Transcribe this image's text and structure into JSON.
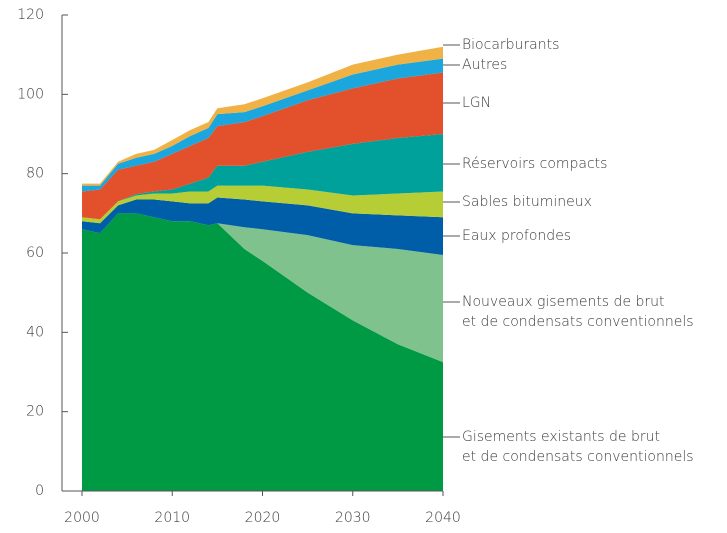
{
  "chart_data": {
    "type": "stacked_area",
    "x": [
      2000,
      2002,
      2004,
      2006,
      2008,
      2010,
      2012,
      2014,
      2015,
      2018,
      2020,
      2025,
      2030,
      2035,
      2040
    ],
    "xlim": [
      2000,
      2040
    ],
    "xticks": [
      2000,
      2010,
      2020,
      2030,
      2040
    ],
    "ylim": [
      0,
      120
    ],
    "yticks": [
      0,
      20,
      40,
      60,
      80,
      100,
      120
    ],
    "series": [
      {
        "name": "Gisements existants de brut\net de condensats conventionnels",
        "color": "#009a44",
        "values": [
          66,
          65,
          70,
          70,
          69,
          68,
          68,
          67,
          67.5,
          61,
          58,
          50,
          43,
          37,
          32.5
        ]
      },
      {
        "name": "Nouveaux gisements de brut\net de condensats conventionnels",
        "color": "#7fc28e",
        "values": [
          0,
          0,
          0,
          0,
          0,
          0,
          0,
          0,
          0,
          5.5,
          8,
          14.5,
          19,
          24,
          27
        ]
      },
      {
        "name": "Eaux profondes",
        "color": "#005ea8",
        "values": [
          2,
          2.5,
          2,
          3.5,
          4.5,
          5,
          4.5,
          5.5,
          6.5,
          7,
          7,
          7.5,
          8,
          8.5,
          9.5
        ]
      },
      {
        "name": "Sables bitumineux",
        "color": "#b7cd36",
        "values": [
          1,
          1,
          1,
          1,
          1.5,
          2,
          3,
          3,
          3,
          3.5,
          4,
          4,
          4.5,
          5.5,
          6.5
        ]
      },
      {
        "name": "Réservoirs compacts",
        "color": "#00a19a",
        "values": [
          0,
          0,
          0,
          0.3,
          0.5,
          1,
          2,
          3.5,
          5,
          5,
          6,
          9.5,
          13,
          14,
          14.5
        ]
      },
      {
        "name": "LGN",
        "color": "#e2512b",
        "values": [
          6.5,
          7.5,
          8,
          7.2,
          7.5,
          9,
          9.5,
          10,
          10,
          11,
          11.5,
          13,
          14,
          15,
          15.5
        ]
      },
      {
        "name": "Autres",
        "color": "#1ba6de",
        "values": [
          1.5,
          1,
          1.5,
          2,
          2,
          2,
          2.5,
          2.5,
          3,
          2.5,
          2.5,
          2.5,
          3.5,
          3.5,
          3.5
        ]
      },
      {
        "name": "Biocarburants",
        "color": "#f0b245",
        "values": [
          0.5,
          0.5,
          0.5,
          1,
          1,
          1.5,
          1.5,
          1.5,
          1.5,
          2,
          2,
          2,
          2.5,
          2.5,
          3
        ]
      }
    ]
  }
}
